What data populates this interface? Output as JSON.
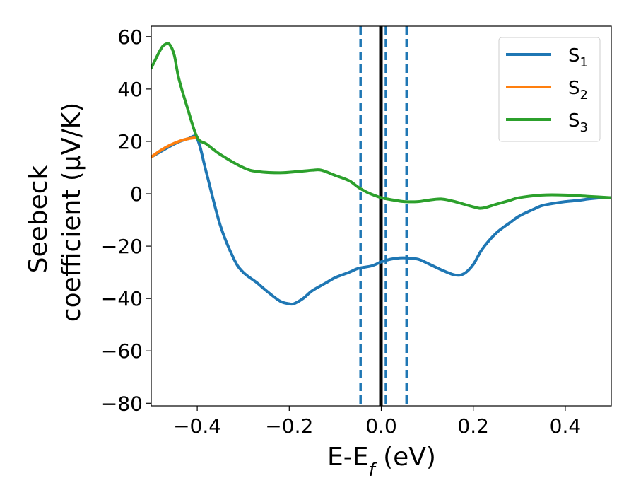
{
  "chart_data": {
    "type": "line",
    "title": "",
    "xlabel": "E-E",
    "xlabel_sub": "f",
    "xlabel_unit": " (eV)",
    "ylabel_line1": "Seebeck",
    "ylabel_line2": "coefficient  (μV/K)",
    "xlim": [
      -0.5,
      0.5
    ],
    "ylim": [
      -81,
      64
    ],
    "xticks": [
      -0.4,
      -0.2,
      0.0,
      0.2,
      0.4
    ],
    "xtick_labels": [
      "−0.4",
      "−0.2",
      "0.0",
      "0.2",
      "0.4"
    ],
    "yticks": [
      -80,
      -60,
      -40,
      -20,
      0,
      20,
      40,
      60
    ],
    "ytick_labels": [
      "−80",
      "−60",
      "−40",
      "−20",
      "0",
      "20",
      "40",
      "60"
    ],
    "grid": false,
    "legend_position": "top-right",
    "vertical_lines": [
      {
        "x": 0.0,
        "style": "solid",
        "color": "#000000"
      },
      {
        "x": -0.045,
        "style": "dashed",
        "color": "#1f77b4"
      },
      {
        "x": 0.01,
        "style": "dashed",
        "color": "#1f77b4"
      },
      {
        "x": 0.055,
        "style": "dashed",
        "color": "#1f77b4"
      }
    ],
    "series": [
      {
        "name": "S",
        "name_sub": "1",
        "color": "#1f77b4",
        "x": [
          -0.5,
          -0.45,
          -0.42,
          -0.4,
          -0.38,
          -0.35,
          -0.32,
          -0.3,
          -0.27,
          -0.25,
          -0.22,
          -0.2,
          -0.19,
          -0.17,
          -0.15,
          -0.12,
          -0.1,
          -0.07,
          -0.05,
          -0.02,
          0.0,
          0.02,
          0.04,
          0.055,
          0.08,
          0.1,
          0.13,
          0.16,
          0.18,
          0.2,
          0.22,
          0.25,
          0.28,
          0.3,
          0.33,
          0.35,
          0.38,
          0.4,
          0.43,
          0.45,
          0.48,
          0.5
        ],
        "y": [
          14,
          19,
          21,
          21,
          8,
          -12,
          -25,
          -30,
          -34,
          -37,
          -41,
          -42,
          -42,
          -40,
          -37,
          -34,
          -32,
          -30,
          -28.5,
          -27.5,
          -26,
          -25,
          -24.5,
          -24.5,
          -25,
          -26.5,
          -29,
          -31,
          -30.5,
          -27,
          -21,
          -15,
          -11,
          -8.5,
          -6,
          -4.5,
          -3.5,
          -3,
          -2.5,
          -2,
          -1.5,
          -1.5
        ]
      },
      {
        "name": "S",
        "name_sub": "2",
        "color": "#ff7f0e",
        "x": [
          -0.5,
          -0.48,
          -0.46,
          -0.44,
          -0.42,
          -0.4
        ],
        "y": [
          14,
          16.5,
          18.5,
          20,
          21,
          21.5
        ]
      },
      {
        "name": "S",
        "name_sub": "3",
        "color": "#2ca02c",
        "x": [
          -0.5,
          -0.48,
          -0.47,
          -0.46,
          -0.45,
          -0.44,
          -0.42,
          -0.4,
          -0.38,
          -0.35,
          -0.3,
          -0.27,
          -0.22,
          -0.18,
          -0.15,
          -0.13,
          -0.1,
          -0.07,
          -0.05,
          -0.03,
          0.0,
          0.03,
          0.05,
          0.08,
          0.1,
          0.13,
          0.16,
          0.2,
          0.22,
          0.25,
          0.28,
          0.3,
          0.35,
          0.4,
          0.45,
          0.5
        ],
        "y": [
          48,
          55,
          57,
          57,
          53,
          44,
          32,
          21.5,
          19,
          15,
          10,
          8.5,
          8,
          8.5,
          9,
          9,
          7,
          5,
          2.5,
          0.5,
          -1.5,
          -2.5,
          -3,
          -3,
          -2.5,
          -2,
          -3,
          -5,
          -5.5,
          -4,
          -2.5,
          -1.5,
          -0.5,
          -0.5,
          -1,
          -1.5
        ]
      }
    ]
  }
}
